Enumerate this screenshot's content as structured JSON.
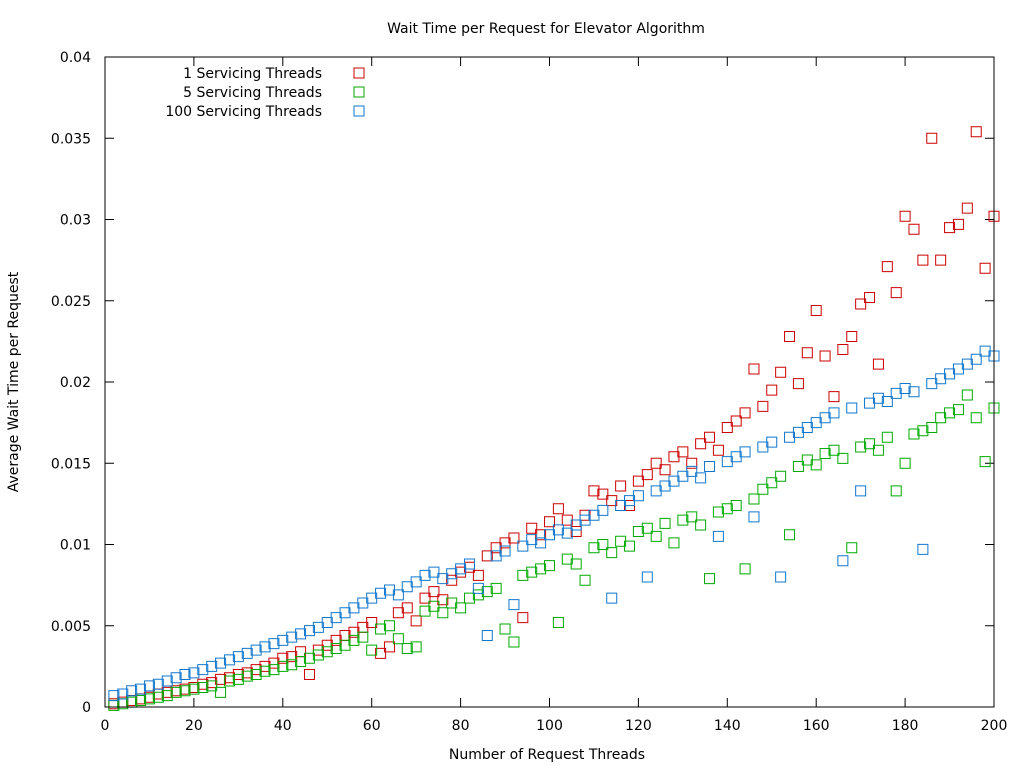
{
  "chart_data": {
    "type": "scatter",
    "title": "Wait Time per Request for Elevator Algorithm",
    "xlabel": "Number of Request Threads",
    "ylabel": "Average Wait Time per Request",
    "xlim": [
      0,
      200
    ],
    "ylim": [
      0,
      0.04
    ],
    "x_ticks": [
      "0",
      "20",
      "40",
      "60",
      "80",
      "100",
      "120",
      "140",
      "160",
      "180",
      "200"
    ],
    "y_ticks": [
      "0",
      "0.005",
      "0.01",
      "0.015",
      "0.02",
      "0.025",
      "0.03",
      "0.035",
      "0.04"
    ],
    "grid": false,
    "legend_position": "top-left",
    "marker": "hollow-square",
    "series": [
      {
        "name": "1 Servicing Threads",
        "color": "#cc0000",
        "points": [
          [
            2,
            0.0002
          ],
          [
            4,
            0.0003
          ],
          [
            6,
            0.0004
          ],
          [
            8,
            0.0005
          ],
          [
            10,
            0.0006
          ],
          [
            12,
            0.0008
          ],
          [
            14,
            0.0009
          ],
          [
            16,
            0.001
          ],
          [
            18,
            0.0011
          ],
          [
            20,
            0.0012
          ],
          [
            22,
            0.0014
          ],
          [
            24,
            0.0015
          ],
          [
            26,
            0.0017
          ],
          [
            28,
            0.0018
          ],
          [
            30,
            0.002
          ],
          [
            32,
            0.0021
          ],
          [
            34,
            0.0023
          ],
          [
            36,
            0.0025
          ],
          [
            38,
            0.0027
          ],
          [
            40,
            0.003
          ],
          [
            42,
            0.0031
          ],
          [
            44,
            0.0034
          ],
          [
            46,
            0.002
          ],
          [
            48,
            0.0035
          ],
          [
            50,
            0.0038
          ],
          [
            52,
            0.0041
          ],
          [
            54,
            0.0044
          ],
          [
            56,
            0.0046
          ],
          [
            58,
            0.0049
          ],
          [
            60,
            0.0052
          ],
          [
            62,
            0.0033
          ],
          [
            64,
            0.0037
          ],
          [
            66,
            0.0058
          ],
          [
            68,
            0.0061
          ],
          [
            70,
            0.0053
          ],
          [
            72,
            0.0067
          ],
          [
            74,
            0.0071
          ],
          [
            76,
            0.0066
          ],
          [
            78,
            0.0078
          ],
          [
            80,
            0.0083
          ],
          [
            82,
            0.0086
          ],
          [
            84,
            0.0081
          ],
          [
            86,
            0.0093
          ],
          [
            88,
            0.0098
          ],
          [
            90,
            0.0101
          ],
          [
            92,
            0.0104
          ],
          [
            94,
            0.0055
          ],
          [
            96,
            0.011
          ],
          [
            98,
            0.0106
          ],
          [
            100,
            0.0114
          ],
          [
            102,
            0.0122
          ],
          [
            104,
            0.0115
          ],
          [
            106,
            0.0108
          ],
          [
            108,
            0.0118
          ],
          [
            110,
            0.0133
          ],
          [
            112,
            0.0131
          ],
          [
            114,
            0.0127
          ],
          [
            116,
            0.0136
          ],
          [
            118,
            0.0124
          ],
          [
            120,
            0.0139
          ],
          [
            122,
            0.0143
          ],
          [
            124,
            0.015
          ],
          [
            126,
            0.0146
          ],
          [
            128,
            0.0154
          ],
          [
            130,
            0.0157
          ],
          [
            132,
            0.015
          ],
          [
            134,
            0.0162
          ],
          [
            136,
            0.0166
          ],
          [
            138,
            0.0158
          ],
          [
            140,
            0.0172
          ],
          [
            142,
            0.0176
          ],
          [
            144,
            0.0181
          ],
          [
            146,
            0.0208
          ],
          [
            148,
            0.0185
          ],
          [
            150,
            0.0195
          ],
          [
            152,
            0.0206
          ],
          [
            154,
            0.0228
          ],
          [
            156,
            0.0199
          ],
          [
            158,
            0.0218
          ],
          [
            160,
            0.0244
          ],
          [
            162,
            0.0216
          ],
          [
            164,
            0.0191
          ],
          [
            166,
            0.022
          ],
          [
            168,
            0.0228
          ],
          [
            170,
            0.0248
          ],
          [
            172,
            0.0252
          ],
          [
            174,
            0.0211
          ],
          [
            176,
            0.0271
          ],
          [
            178,
            0.0255
          ],
          [
            180,
            0.0302
          ],
          [
            182,
            0.0294
          ],
          [
            184,
            0.0275
          ],
          [
            186,
            0.035
          ],
          [
            188,
            0.0275
          ],
          [
            190,
            0.0295
          ],
          [
            192,
            0.0297
          ],
          [
            194,
            0.0307
          ],
          [
            196,
            0.0354
          ],
          [
            198,
            0.027
          ],
          [
            200,
            0.0302
          ]
        ]
      },
      {
        "name": "5 Servicing Threads",
        "color": "#00aa00",
        "points": [
          [
            2,
            0.0001
          ],
          [
            4,
            0.0002
          ],
          [
            6,
            0.0003
          ],
          [
            8,
            0.0004
          ],
          [
            10,
            0.0005
          ],
          [
            12,
            0.0006
          ],
          [
            14,
            0.0007
          ],
          [
            16,
            0.0009
          ],
          [
            18,
            0.001
          ],
          [
            20,
            0.0011
          ],
          [
            22,
            0.0012
          ],
          [
            24,
            0.0013
          ],
          [
            26,
            0.0009
          ],
          [
            28,
            0.0016
          ],
          [
            30,
            0.0017
          ],
          [
            32,
            0.0019
          ],
          [
            34,
            0.002
          ],
          [
            36,
            0.0022
          ],
          [
            38,
            0.0023
          ],
          [
            40,
            0.0025
          ],
          [
            42,
            0.0026
          ],
          [
            44,
            0.0028
          ],
          [
            46,
            0.003
          ],
          [
            48,
            0.0032
          ],
          [
            50,
            0.0034
          ],
          [
            52,
            0.0036
          ],
          [
            54,
            0.0038
          ],
          [
            56,
            0.0041
          ],
          [
            58,
            0.0043
          ],
          [
            60,
            0.0035
          ],
          [
            62,
            0.0048
          ],
          [
            64,
            0.005
          ],
          [
            66,
            0.0042
          ],
          [
            68,
            0.0036
          ],
          [
            70,
            0.0037
          ],
          [
            72,
            0.0059
          ],
          [
            74,
            0.0062
          ],
          [
            76,
            0.0058
          ],
          [
            78,
            0.0064
          ],
          [
            80,
            0.0061
          ],
          [
            82,
            0.0067
          ],
          [
            84,
            0.0069
          ],
          [
            86,
            0.0071
          ],
          [
            88,
            0.0073
          ],
          [
            90,
            0.0048
          ],
          [
            92,
            0.004
          ],
          [
            94,
            0.0081
          ],
          [
            96,
            0.0083
          ],
          [
            98,
            0.0085
          ],
          [
            100,
            0.0087
          ],
          [
            102,
            0.0052
          ],
          [
            104,
            0.0091
          ],
          [
            106,
            0.0088
          ],
          [
            108,
            0.0078
          ],
          [
            110,
            0.0098
          ],
          [
            112,
            0.01
          ],
          [
            114,
            0.0095
          ],
          [
            116,
            0.0102
          ],
          [
            118,
            0.0099
          ],
          [
            120,
            0.0108
          ],
          [
            122,
            0.011
          ],
          [
            124,
            0.0105
          ],
          [
            126,
            0.0113
          ],
          [
            128,
            0.0101
          ],
          [
            130,
            0.0115
          ],
          [
            132,
            0.0117
          ],
          [
            134,
            0.0112
          ],
          [
            136,
            0.0079
          ],
          [
            138,
            0.012
          ],
          [
            140,
            0.0122
          ],
          [
            142,
            0.0124
          ],
          [
            144,
            0.0085
          ],
          [
            146,
            0.0128
          ],
          [
            148,
            0.0134
          ],
          [
            150,
            0.0138
          ],
          [
            152,
            0.0142
          ],
          [
            154,
            0.0106
          ],
          [
            156,
            0.0148
          ],
          [
            158,
            0.0152
          ],
          [
            160,
            0.0149
          ],
          [
            162,
            0.0156
          ],
          [
            164,
            0.0158
          ],
          [
            166,
            0.0153
          ],
          [
            168,
            0.0098
          ],
          [
            170,
            0.016
          ],
          [
            172,
            0.0162
          ],
          [
            174,
            0.0158
          ],
          [
            176,
            0.0166
          ],
          [
            178,
            0.0133
          ],
          [
            180,
            0.015
          ],
          [
            182,
            0.0168
          ],
          [
            184,
            0.017
          ],
          [
            186,
            0.0172
          ],
          [
            188,
            0.0178
          ],
          [
            190,
            0.0181
          ],
          [
            192,
            0.0183
          ],
          [
            194,
            0.0192
          ],
          [
            196,
            0.0178
          ],
          [
            198,
            0.0151
          ],
          [
            200,
            0.0184
          ]
        ]
      },
      {
        "name": "100 Servicing Threads",
        "color": "#1177cc",
        "points": [
          [
            2,
            0.0007
          ],
          [
            4,
            0.0008
          ],
          [
            6,
            0.001
          ],
          [
            8,
            0.0011
          ],
          [
            10,
            0.0013
          ],
          [
            12,
            0.0014
          ],
          [
            14,
            0.0016
          ],
          [
            16,
            0.0018
          ],
          [
            18,
            0.002
          ],
          [
            20,
            0.0021
          ],
          [
            22,
            0.0023
          ],
          [
            24,
            0.0025
          ],
          [
            26,
            0.0027
          ],
          [
            28,
            0.0029
          ],
          [
            30,
            0.0031
          ],
          [
            32,
            0.0033
          ],
          [
            34,
            0.0035
          ],
          [
            36,
            0.0037
          ],
          [
            38,
            0.0039
          ],
          [
            40,
            0.0041
          ],
          [
            42,
            0.0043
          ],
          [
            44,
            0.0045
          ],
          [
            46,
            0.0047
          ],
          [
            48,
            0.0049
          ],
          [
            50,
            0.0052
          ],
          [
            52,
            0.0055
          ],
          [
            54,
            0.0058
          ],
          [
            56,
            0.0061
          ],
          [
            58,
            0.0064
          ],
          [
            60,
            0.0067
          ],
          [
            62,
            0.007
          ],
          [
            64,
            0.0072
          ],
          [
            66,
            0.0069
          ],
          [
            68,
            0.0074
          ],
          [
            70,
            0.0077
          ],
          [
            72,
            0.0081
          ],
          [
            74,
            0.0083
          ],
          [
            76,
            0.0079
          ],
          [
            78,
            0.0082
          ],
          [
            80,
            0.0085
          ],
          [
            82,
            0.0088
          ],
          [
            84,
            0.0073
          ],
          [
            86,
            0.0044
          ],
          [
            88,
            0.0093
          ],
          [
            90,
            0.0096
          ],
          [
            92,
            0.0063
          ],
          [
            94,
            0.0099
          ],
          [
            96,
            0.0103
          ],
          [
            98,
            0.0101
          ],
          [
            100,
            0.0106
          ],
          [
            102,
            0.0109
          ],
          [
            104,
            0.0107
          ],
          [
            106,
            0.0112
          ],
          [
            108,
            0.0115
          ],
          [
            110,
            0.0118
          ],
          [
            112,
            0.0121
          ],
          [
            114,
            0.0067
          ],
          [
            116,
            0.0124
          ],
          [
            118,
            0.0127
          ],
          [
            120,
            0.013
          ],
          [
            122,
            0.008
          ],
          [
            124,
            0.0133
          ],
          [
            126,
            0.0136
          ],
          [
            128,
            0.0139
          ],
          [
            130,
            0.0142
          ],
          [
            132,
            0.0145
          ],
          [
            134,
            0.0141
          ],
          [
            136,
            0.0148
          ],
          [
            138,
            0.0105
          ],
          [
            140,
            0.0151
          ],
          [
            142,
            0.0154
          ],
          [
            144,
            0.0157
          ],
          [
            146,
            0.0117
          ],
          [
            148,
            0.016
          ],
          [
            150,
            0.0163
          ],
          [
            152,
            0.008
          ],
          [
            154,
            0.0166
          ],
          [
            156,
            0.0169
          ],
          [
            158,
            0.0172
          ],
          [
            160,
            0.0175
          ],
          [
            162,
            0.0178
          ],
          [
            164,
            0.0181
          ],
          [
            166,
            0.009
          ],
          [
            168,
            0.0184
          ],
          [
            170,
            0.0133
          ],
          [
            172,
            0.0187
          ],
          [
            174,
            0.019
          ],
          [
            176,
            0.0188
          ],
          [
            178,
            0.0193
          ],
          [
            180,
            0.0196
          ],
          [
            182,
            0.0194
          ],
          [
            184,
            0.0097
          ],
          [
            186,
            0.0199
          ],
          [
            188,
            0.0202
          ],
          [
            190,
            0.0205
          ],
          [
            192,
            0.0208
          ],
          [
            194,
            0.0211
          ],
          [
            196,
            0.0214
          ],
          [
            198,
            0.0219
          ],
          [
            200,
            0.0216
          ]
        ]
      }
    ]
  }
}
